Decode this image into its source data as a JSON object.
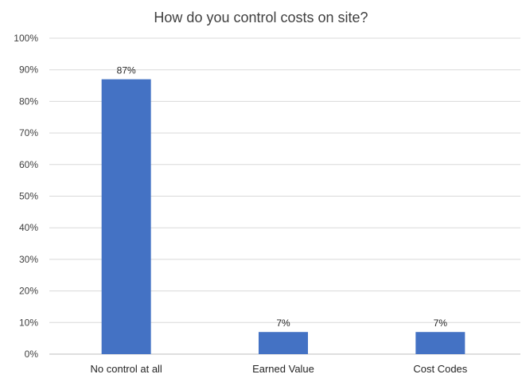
{
  "chart_data": {
    "type": "bar",
    "title": "How do you control costs on site?",
    "categories": [
      "No control at all",
      "Earned Value",
      "Cost Codes"
    ],
    "values": [
      87,
      7,
      7
    ],
    "value_labels": [
      "87%",
      "7%",
      "7%"
    ],
    "ylim": [
      0,
      100
    ],
    "yticks": [
      0,
      10,
      20,
      30,
      40,
      50,
      60,
      70,
      80,
      90,
      100
    ],
    "ytick_labels": [
      "0%",
      "10%",
      "20%",
      "30%",
      "40%",
      "50%",
      "60%",
      "70%",
      "80%",
      "90%",
      "100%"
    ],
    "xlabel": "",
    "ylabel": "",
    "grid": true,
    "legend": "none",
    "bar_color": "#4472C4",
    "grid_color": "#D9D9D9"
  }
}
